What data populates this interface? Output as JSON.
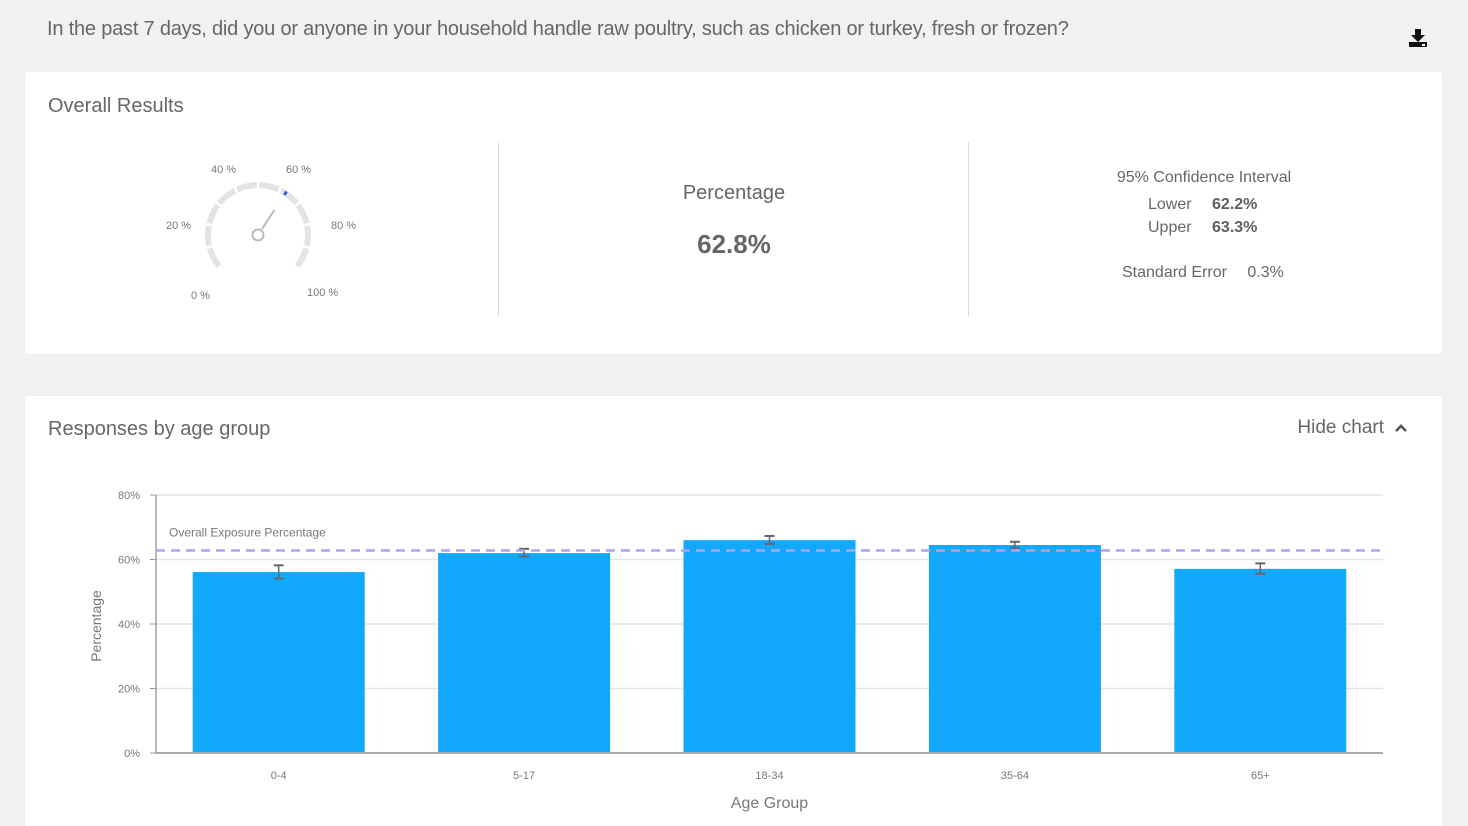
{
  "question": "In the past 7 days, did you or anyone in your household handle raw poultry, such as chicken or turkey, fresh or frozen?",
  "download_icon": "download-icon",
  "overall": {
    "title": "Overall Results",
    "gauge": {
      "value": 62.8,
      "labels": [
        "0 %",
        "20 %",
        "40 %",
        "60 %",
        "80 %",
        "100 %"
      ],
      "marker_color": "#1f4fd6",
      "track_color": "#e3e3e3"
    },
    "percentage_label": "Percentage",
    "percentage_value": "62.8%",
    "ci_title": "95% Confidence Interval",
    "lower_label": "Lower",
    "lower_value": "62.2%",
    "upper_label": "Upper",
    "upper_value": "63.3%",
    "se_label": "Standard Error",
    "se_value": "0.3%"
  },
  "age_section": {
    "title": "Responses by age group",
    "toggle_label": "Hide chart",
    "toggle_icon": "chevron-up-icon"
  },
  "chart_data": {
    "type": "bar",
    "title": "Responses by age group",
    "xlabel": "Age Group",
    "ylabel": "Percentage",
    "ylim": [
      0,
      80
    ],
    "yticks": [
      "0%",
      "20%",
      "40%",
      "60%",
      "80%"
    ],
    "categories": [
      "0-4",
      "5-17",
      "18-34",
      "35-64",
      "65+"
    ],
    "values": [
      56.1,
      62.0,
      66.0,
      64.5,
      57.1
    ],
    "error_low": [
      54.1,
      60.9,
      64.8,
      63.6,
      55.6
    ],
    "error_high": [
      58.2,
      63.3,
      67.3,
      65.5,
      58.8
    ],
    "bar_color": "#12a8fb",
    "reference_line": {
      "label": "Overall Exposure Percentage",
      "value": 62.8,
      "color": "#a8a6f0",
      "style": "dashed"
    },
    "grid": true,
    "legend": null
  }
}
